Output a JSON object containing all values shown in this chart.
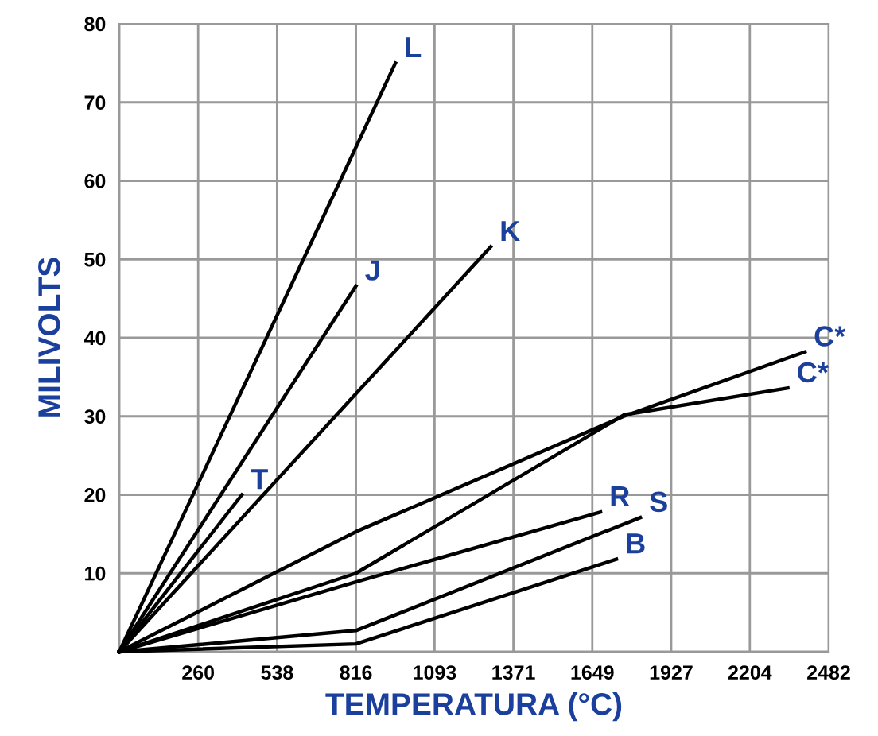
{
  "chart_data": {
    "type": "line",
    "xlabel": "TEMPERATURA (°C)",
    "ylabel": "MILIVOLTS",
    "xlim": [
      -18,
      2482
    ],
    "ylim": [
      0,
      80
    ],
    "xticks": [
      {
        "value": -18,
        "label": null
      },
      260,
      538,
      816,
      1093,
      1371,
      1649,
      1927,
      2204,
      2482
    ],
    "yticks": [
      {
        "value": 0,
        "label": null
      },
      10,
      20,
      30,
      40,
      50,
      60,
      70,
      80
    ],
    "grid": true,
    "legend": false,
    "marker": "none",
    "line_style": "solid",
    "series": [
      {
        "name": "L",
        "color": "#000000",
        "x": [
          -18,
          955
        ],
        "values": [
          0,
          75
        ]
      },
      {
        "name": "J",
        "color": "#000000",
        "x": [
          -18,
          816
        ],
        "values": [
          0,
          46.6
        ]
      },
      {
        "name": "T",
        "color": "#000000",
        "x": [
          -18,
          414
        ],
        "values": [
          0,
          20
        ]
      },
      {
        "name": "K",
        "color": "#000000",
        "x": [
          -18,
          1291
        ],
        "values": [
          0,
          51.6
        ]
      },
      {
        "name": "C*",
        "color": "#000000",
        "x": [
          -18,
          816,
          1760,
          2398
        ],
        "values": [
          0,
          15.3,
          30,
          38.2
        ]
      },
      {
        "name": "C*",
        "color": "#000000",
        "x": [
          -18,
          816,
          1762,
          2338
        ],
        "values": [
          0,
          10,
          30.2,
          33.6
        ]
      },
      {
        "name": "R",
        "color": "#000000",
        "x": [
          -18,
          816,
          1678
        ],
        "values": [
          0,
          8.9,
          17.8
        ]
      },
      {
        "name": "S",
        "color": "#000000",
        "x": [
          -18,
          816,
          1818
        ],
        "values": [
          0,
          2.7,
          17.1
        ]
      },
      {
        "name": "B",
        "color": "#000000",
        "x": [
          -18,
          816,
          1734
        ],
        "values": [
          0,
          1.0,
          11.8
        ]
      }
    ]
  }
}
